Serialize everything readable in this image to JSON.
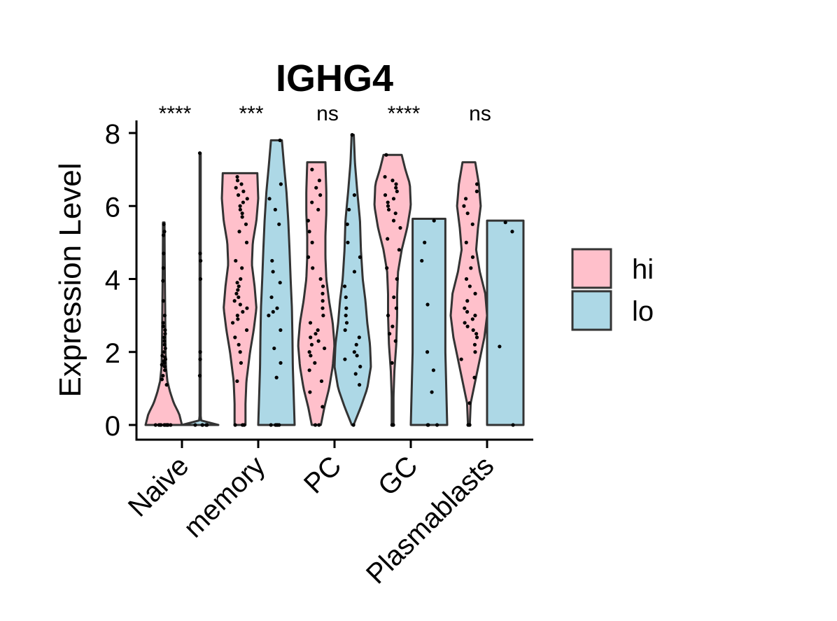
{
  "chart_data": {
    "type": "violin",
    "title": "IGHG4",
    "xlabel": "",
    "ylabel": "Expression Level",
    "ylim": [
      0,
      8.3
    ],
    "yticks": [
      0,
      2,
      4,
      6,
      8
    ],
    "categories": [
      "Naive",
      "memory",
      "PC",
      "GC",
      "Plasmablasts"
    ],
    "significance": [
      "****",
      "***",
      "ns",
      "****",
      "ns"
    ],
    "legend": {
      "position": "right",
      "entries": [
        "hi",
        "lo"
      ]
    },
    "colors": {
      "hi": "#ffc0cb",
      "lo": "#add8e6",
      "outline": "#333333",
      "point": "#000000"
    },
    "series": [
      {
        "name": "hi",
        "groups": [
          {
            "category": "Naive",
            "max": 5.55,
            "profile": [
              [
                0,
                1.0
              ],
              [
                0.3,
                0.85
              ],
              [
                0.6,
                0.55
              ],
              [
                0.9,
                0.35
              ],
              [
                1.2,
                0.2
              ],
              [
                1.6,
                0.12
              ],
              [
                2.0,
                0.1
              ],
              [
                2.5,
                0.09
              ],
              [
                3.0,
                0.08
              ],
              [
                3.5,
                0.07
              ],
              [
                4.0,
                0.06
              ],
              [
                4.6,
                0.05
              ],
              [
                5.55,
                0.04
              ]
            ],
            "points": [
              0,
              0,
              0,
              0,
              0,
              0,
              0,
              0,
              0,
              0,
              0,
              0,
              1.1,
              1.25,
              1.35,
              1.5,
              1.6,
              1.65,
              1.7,
              1.75,
              1.8,
              1.85,
              1.9,
              2.0,
              2.1,
              2.2,
              2.3,
              2.4,
              2.5,
              2.6,
              2.7,
              2.8,
              3.0,
              3.4,
              3.95,
              4.3,
              4.7,
              5.2,
              5.3,
              5.5
            ]
          },
          {
            "category": "memory",
            "max": 6.9,
            "profile": [
              [
                0,
                0.3
              ],
              [
                0.6,
                0.3
              ],
              [
                1.2,
                0.35
              ],
              [
                2.0,
                0.55
              ],
              [
                2.6,
                0.75
              ],
              [
                3.2,
                0.9
              ],
              [
                3.8,
                0.8
              ],
              [
                4.4,
                0.65
              ],
              [
                5.0,
                0.7
              ],
              [
                5.6,
                0.9
              ],
              [
                6.2,
                1.0
              ],
              [
                6.9,
                0.95
              ]
            ],
            "points": [
              0,
              0,
              0,
              1.2,
              1.7,
              2.0,
              2.2,
              2.4,
              2.6,
              2.8,
              2.9,
              3.0,
              3.1,
              3.2,
              3.3,
              3.4,
              3.5,
              3.6,
              3.7,
              3.8,
              3.9,
              4.0,
              4.3,
              4.5,
              5.0,
              5.3,
              5.5,
              5.7,
              5.8,
              5.9,
              6.0,
              6.1,
              6.2,
              6.3,
              6.4,
              6.5,
              6.6,
              6.7,
              6.8
            ]
          },
          {
            "category": "PC",
            "max": 7.2,
            "profile": [
              [
                0,
                0.25
              ],
              [
                0.5,
                0.45
              ],
              [
                1.0,
                0.7
              ],
              [
                1.6,
                0.9
              ],
              [
                2.2,
                1.0
              ],
              [
                2.8,
                0.9
              ],
              [
                3.4,
                0.7
              ],
              [
                4.0,
                0.55
              ],
              [
                4.6,
                0.5
              ],
              [
                5.2,
                0.5
              ],
              [
                5.8,
                0.55
              ],
              [
                6.4,
                0.55
              ],
              [
                7.2,
                0.5
              ]
            ],
            "points": [
              0,
              0,
              0.5,
              0.9,
              1.2,
              1.5,
              1.7,
              1.9,
              2.0,
              2.1,
              2.2,
              2.3,
              2.4,
              2.5,
              2.6,
              2.8,
              3.0,
              3.2,
              3.4,
              3.6,
              3.8,
              4.0,
              4.3,
              4.6,
              5.0,
              5.3,
              5.6,
              5.9,
              6.1,
              6.3,
              6.5,
              6.7,
              7.0
            ]
          },
          {
            "category": "GC",
            "max": 7.4,
            "profile": [
              [
                0,
                0.05
              ],
              [
                0.8,
                0.05
              ],
              [
                1.5,
                0.1
              ],
              [
                2.2,
                0.2
              ],
              [
                3.0,
                0.25
              ],
              [
                3.6,
                0.25
              ],
              [
                4.2,
                0.3
              ],
              [
                4.8,
                0.5
              ],
              [
                5.4,
                0.8
              ],
              [
                6.0,
                1.0
              ],
              [
                6.6,
                0.95
              ],
              [
                7.0,
                0.7
              ],
              [
                7.4,
                0.5
              ]
            ],
            "points": [
              0,
              0,
              1.7,
              2.3,
              2.5,
              2.7,
              3.0,
              3.2,
              3.5,
              4.0,
              4.3,
              4.8,
              5.1,
              5.4,
              5.6,
              5.8,
              5.9,
              6.0,
              6.1,
              6.2,
              6.3,
              6.4,
              6.5,
              6.6,
              6.7,
              6.8,
              7.4
            ]
          },
          {
            "category": "Plasmablasts",
            "max": 7.2,
            "profile": [
              [
                0,
                0.05
              ],
              [
                0.6,
                0.1
              ],
              [
                1.2,
                0.35
              ],
              [
                1.8,
                0.6
              ],
              [
                2.4,
                0.85
              ],
              [
                3.0,
                1.0
              ],
              [
                3.6,
                0.9
              ],
              [
                4.2,
                0.6
              ],
              [
                4.8,
                0.4
              ],
              [
                5.4,
                0.5
              ],
              [
                6.0,
                0.65
              ],
              [
                6.6,
                0.55
              ],
              [
                7.2,
                0.35
              ]
            ],
            "points": [
              0,
              0,
              0.6,
              1.3,
              1.8,
              2.0,
              2.2,
              2.4,
              2.5,
              2.6,
              2.7,
              2.8,
              2.9,
              3.0,
              3.1,
              3.2,
              3.4,
              3.6,
              3.8,
              4.0,
              4.3,
              4.6,
              5.0,
              5.5,
              5.8,
              6.0,
              6.2,
              6.4,
              6.6
            ]
          }
        ]
      },
      {
        "name": "lo",
        "groups": [
          {
            "category": "Naive",
            "max": 7.45,
            "profile": [
              [
                0,
                1.0
              ],
              [
                0.05,
                0.08
              ],
              [
                0.2,
                0.03
              ],
              [
                1.0,
                0.03
              ],
              [
                3.0,
                0.03
              ],
              [
                5.0,
                0.03
              ],
              [
                7.45,
                0.03
              ]
            ],
            "points": [
              0,
              0,
              0,
              0,
              0,
              1.35,
              1.8,
              2.0,
              4.0,
              4.5,
              4.7,
              7.45
            ]
          },
          {
            "category": "memory",
            "max": 7.8,
            "profile": [
              [
                0,
                1.0
              ],
              [
                0.8,
                0.95
              ],
              [
                1.6,
                0.9
              ],
              [
                2.4,
                0.88
              ],
              [
                3.2,
                0.85
              ],
              [
                4.0,
                0.78
              ],
              [
                4.8,
                0.72
              ],
              [
                5.6,
                0.65
              ],
              [
                6.4,
                0.55
              ],
              [
                7.1,
                0.42
              ],
              [
                7.8,
                0.3
              ]
            ],
            "points": [
              0,
              0,
              0,
              0,
              0,
              1.3,
              1.7,
              2.1,
              2.6,
              3.0,
              3.1,
              3.2,
              3.5,
              3.9,
              4.2,
              4.5,
              5.5,
              5.9,
              6.2,
              6.6,
              7.8
            ]
          },
          {
            "category": "PC",
            "max": 7.95,
            "profile": [
              [
                0,
                0.05
              ],
              [
                0.5,
                0.45
              ],
              [
                1.0,
                0.8
              ],
              [
                1.6,
                1.0
              ],
              [
                2.2,
                0.95
              ],
              [
                2.8,
                0.8
              ],
              [
                3.4,
                0.7
              ],
              [
                4.0,
                0.55
              ],
              [
                4.8,
                0.45
              ],
              [
                5.6,
                0.4
              ],
              [
                6.4,
                0.25
              ],
              [
                7.2,
                0.12
              ],
              [
                7.95,
                0.06
              ]
            ],
            "points": [
              0,
              1.1,
              1.4,
              1.6,
              1.8,
              1.9,
              2.0,
              2.2,
              2.4,
              2.6,
              2.8,
              3.0,
              3.2,
              3.5,
              3.8,
              4.2,
              4.6,
              5.0,
              5.5,
              5.9,
              6.3,
              7.95
            ]
          },
          {
            "category": "GC",
            "max": 5.65,
            "profile": [
              [
                0,
                1.0
              ],
              [
                1.0,
                0.95
              ],
              [
                2.0,
                0.9
              ],
              [
                3.0,
                0.9
              ],
              [
                4.0,
                0.9
              ],
              [
                5.0,
                0.9
              ],
              [
                5.65,
                0.9
              ]
            ],
            "points": [
              0,
              0,
              0,
              0.9,
              1.5,
              2.0,
              3.3,
              4.5,
              5.0,
              5.6
            ]
          },
          {
            "category": "Plasmablasts",
            "max": 5.6,
            "profile": [
              [
                0,
                1.0
              ],
              [
                1.0,
                1.0
              ],
              [
                2.0,
                1.0
              ],
              [
                3.0,
                1.0
              ],
              [
                4.0,
                1.0
              ],
              [
                5.0,
                1.0
              ],
              [
                5.6,
                1.0
              ]
            ],
            "points": [
              0,
              2.15,
              5.3,
              5.55
            ]
          }
        ]
      }
    ]
  }
}
